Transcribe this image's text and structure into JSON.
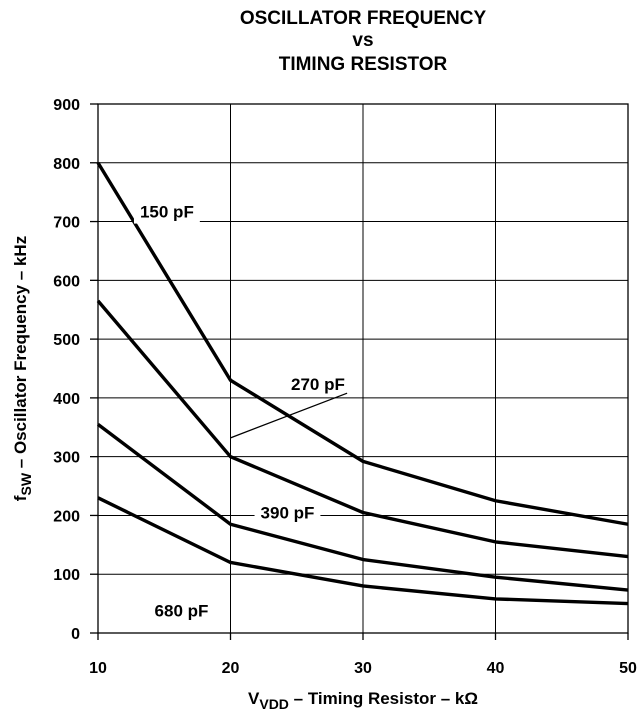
{
  "chart_data": {
    "type": "line",
    "title": [
      "OSCILLATOR FREQUENCY",
      "vs",
      "TIMING RESISTOR"
    ],
    "xlabel": {
      "main": "V",
      "sub": "VDD",
      "rest": " – Timing Resistor – k",
      "unit": "Ω"
    },
    "ylabel": {
      "main": "f",
      "sub": "SW",
      "rest": " – Oscillator Frequency – kHz"
    },
    "xlim": [
      10,
      50
    ],
    "ylim": [
      0,
      900
    ],
    "xticks": [
      10,
      20,
      30,
      40,
      50
    ],
    "yticks": [
      0,
      100,
      200,
      300,
      400,
      500,
      600,
      700,
      800,
      900
    ],
    "grid": true,
    "x": [
      10,
      20,
      30,
      40,
      50
    ],
    "series": [
      {
        "name": "150 pF",
        "values": [
          800,
          430,
          292,
          225,
          185
        ]
      },
      {
        "name": "270 pF",
        "values": [
          565,
          300,
          205,
          155,
          130
        ]
      },
      {
        "name": "390 pF",
        "values": [
          355,
          185,
          125,
          95,
          73
        ]
      },
      {
        "name": "680 pF",
        "values": [
          230,
          120,
          80,
          58,
          50
        ]
      }
    ],
    "labels": [
      {
        "text": "150 pF",
        "series": 0,
        "x": 15.2,
        "y": 717
      },
      {
        "text": "270 pF",
        "series": 1,
        "x": 26.6,
        "y": 424,
        "leader": [
          [
            20,
            332
          ],
          [
            28.8,
            408
          ]
        ]
      },
      {
        "text": "390 pF",
        "series": 2,
        "x": 24.3,
        "y": 205
      },
      {
        "text": "680 pF",
        "series": 3,
        "x": 16.3,
        "y": 38
      }
    ]
  }
}
